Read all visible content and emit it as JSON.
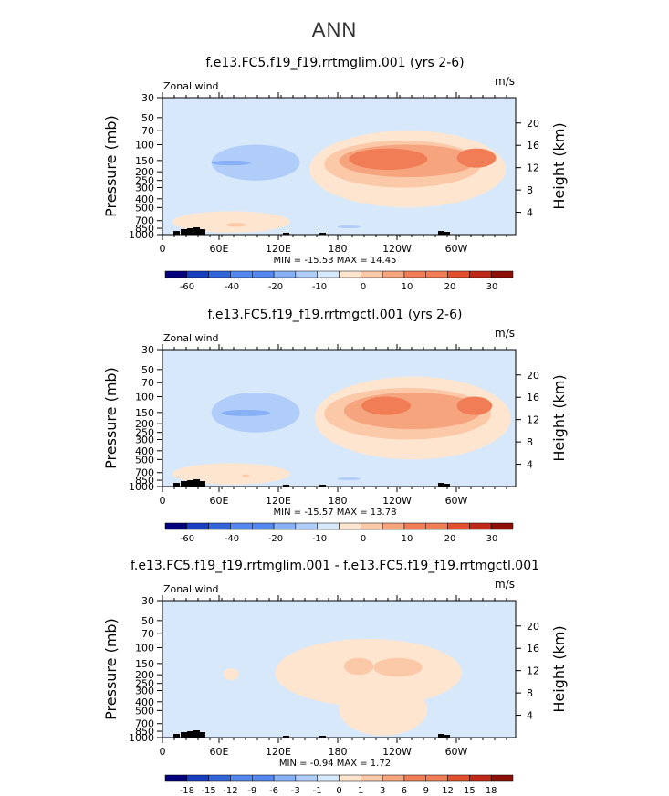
{
  "page": {
    "title": "ANN"
  },
  "colors": {
    "plot_bg": "#d7e8fb",
    "level_fill": [
      "#03027a",
      "#1a3ec0",
      "#3364da",
      "#5588ee",
      "#88b0f6",
      "#b0cdfa",
      "#d7e8fb",
      "#fde5d0",
      "#fbc8a8",
      "#f6a47e",
      "#f07d56",
      "#e2502d",
      "#bf2a18",
      "#8b0f06"
    ],
    "topo": "#000000"
  },
  "chart_data": [
    {
      "type": "contour",
      "title": "f.e13.FC5.f19_f19.rrtmglim.001 (yrs 2-6)",
      "left_string": "Zonal wind",
      "right_string": "m/s",
      "ylabel": "Pressure (mb)",
      "ylabel_right": "Height (km)",
      "x_ticks": [
        "0",
        "60E",
        "120E",
        "180",
        "120W",
        "60W"
      ],
      "y_ticks": [
        "30",
        "50",
        "70",
        "100",
        "150",
        "200",
        "250",
        "300",
        "400",
        "500",
        "700",
        "850",
        "1000"
      ],
      "height_ticks": [
        "20",
        "16",
        "12",
        "8",
        "4"
      ],
      "min_max": "MIN = -15.53   MAX = 14.45",
      "colorbar_labels": [
        "-60",
        "-40",
        "-20",
        "-10",
        "0",
        "10",
        "20",
        "30"
      ],
      "features": [
        {
          "level": 5,
          "lon": 95,
          "p": 155,
          "lon_halfwidth": 45,
          "p_range": [
            100,
            250
          ]
        },
        {
          "level": 4,
          "lon": 70,
          "p": 160,
          "lon_halfwidth": 20,
          "p_range": [
            150,
            170
          ]
        },
        {
          "level": 7,
          "lon": 250,
          "p": 140,
          "lon_halfwidth": 100,
          "p_range": [
            70,
            500
          ]
        },
        {
          "level": 8,
          "lon": 245,
          "p": 140,
          "lon_halfwidth": 80,
          "p_range": [
            90,
            300
          ]
        },
        {
          "level": 9,
          "lon": 250,
          "p": 140,
          "lon_halfwidth": 70,
          "p_range": [
            100,
            230
          ]
        },
        {
          "level": 10,
          "lon": 230,
          "p": 135,
          "lon_halfwidth": 40,
          "p_range": [
            110,
            190
          ]
        },
        {
          "level": 10,
          "lon": 320,
          "p": 140,
          "lon_halfwidth": 20,
          "p_range": [
            110,
            180
          ]
        },
        {
          "level": 7,
          "lon": 70,
          "p": 750,
          "lon_halfwidth": 60,
          "p_range": [
            550,
            950
          ]
        },
        {
          "level": 8,
          "lon": 75,
          "p": 780,
          "lon_halfwidth": 10,
          "p_range": [
            740,
            820
          ]
        },
        {
          "level": 5,
          "lon": 190,
          "p": 820,
          "lon_halfwidth": 12,
          "p_range": [
            790,
            850
          ]
        }
      ]
    },
    {
      "type": "contour",
      "title": "f.e13.FC5.f19_f19.rrtmgctl.001 (yrs 2-6)",
      "left_string": "Zonal wind",
      "right_string": "m/s",
      "ylabel": "Pressure (mb)",
      "ylabel_right": "Height (km)",
      "x_ticks": [
        "0",
        "60E",
        "120E",
        "180",
        "120W",
        "60W"
      ],
      "y_ticks": [
        "30",
        "50",
        "70",
        "100",
        "150",
        "200",
        "250",
        "300",
        "400",
        "500",
        "700",
        "850",
        "1000"
      ],
      "height_ticks": [
        "20",
        "16",
        "12",
        "8",
        "4"
      ],
      "min_max": "MIN = -15.57   MAX = 13.78",
      "colorbar_labels": [
        "-60",
        "-40",
        "-20",
        "-10",
        "0",
        "10",
        "20",
        "30"
      ],
      "features": [
        {
          "level": 5,
          "lon": 95,
          "p": 150,
          "lon_halfwidth": 45,
          "p_range": [
            90,
            250
          ]
        },
        {
          "level": 4,
          "lon": 85,
          "p": 150,
          "lon_halfwidth": 25,
          "p_range": [
            140,
            165
          ]
        },
        {
          "level": 7,
          "lon": 255,
          "p": 140,
          "lon_halfwidth": 100,
          "p_range": [
            60,
            500
          ]
        },
        {
          "level": 8,
          "lon": 250,
          "p": 140,
          "lon_halfwidth": 85,
          "p_range": [
            80,
            300
          ]
        },
        {
          "level": 9,
          "lon": 255,
          "p": 140,
          "lon_halfwidth": 70,
          "p_range": [
            90,
            230
          ]
        },
        {
          "level": 10,
          "lon": 228,
          "p": 120,
          "lon_halfwidth": 25,
          "p_range": [
            100,
            160
          ]
        },
        {
          "level": 10,
          "lon": 318,
          "p": 120,
          "lon_halfwidth": 18,
          "p_range": [
            100,
            160
          ]
        },
        {
          "level": 7,
          "lon": 70,
          "p": 750,
          "lon_halfwidth": 60,
          "p_range": [
            550,
            950
          ]
        },
        {
          "level": 8,
          "lon": 85,
          "p": 760,
          "lon_halfwidth": 4,
          "p_range": [
            740,
            780
          ]
        },
        {
          "level": 5,
          "lon": 190,
          "p": 820,
          "lon_halfwidth": 12,
          "p_range": [
            790,
            850
          ]
        }
      ]
    },
    {
      "type": "contour",
      "title": "f.e13.FC5.f19_f19.rrtmglim.001 - f.e13.FC5.f19_f19.rrtmgctl.001",
      "left_string": "Zonal wind",
      "right_string": "m/s",
      "ylabel": "Pressure (mb)",
      "ylabel_right": "Height (km)",
      "x_ticks": [
        "0",
        "60E",
        "120E",
        "180",
        "120W",
        "60W"
      ],
      "y_ticks": [
        "30",
        "50",
        "70",
        "100",
        "150",
        "200",
        "250",
        "300",
        "400",
        "500",
        "700",
        "850",
        "1000"
      ],
      "height_ticks": [
        "20",
        "16",
        "12",
        "8",
        "4"
      ],
      "min_max": "MIN =  -0.94   MAX =   1.72",
      "colorbar_labels": [
        "-18",
        "-15",
        "-12",
        "-9",
        "-6",
        "-3",
        "-1",
        "0",
        "1",
        "3",
        "6",
        "9",
        "12",
        "15",
        "18"
      ],
      "features": [
        {
          "level": 7,
          "lon": 210,
          "p": 200,
          "lon_halfwidth": 95,
          "p_range": [
            80,
            450
          ]
        },
        {
          "level": 7,
          "lon": 225,
          "p": 400,
          "lon_halfwidth": 45,
          "p_range": [
            250,
            950
          ]
        },
        {
          "level": 7,
          "lon": 70,
          "p": 200,
          "lon_halfwidth": 8,
          "p_range": [
            170,
            230
          ]
        },
        {
          "level": 8,
          "lon": 200,
          "p": 160,
          "lon_halfwidth": 15,
          "p_range": [
            130,
            200
          ]
        },
        {
          "level": 8,
          "lon": 240,
          "p": 165,
          "lon_halfwidth": 25,
          "p_range": [
            130,
            210
          ]
        }
      ]
    }
  ]
}
